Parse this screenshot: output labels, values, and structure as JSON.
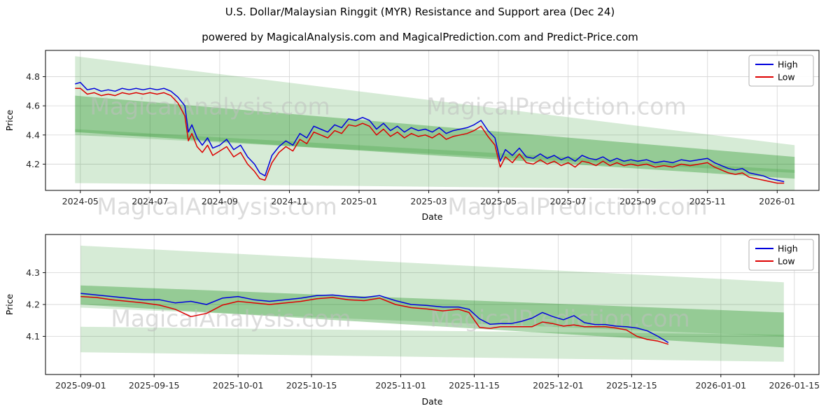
{
  "title": "U.S. Dollar/Malaysian Ringgit (MYR) Resistance and Support area (Dec 24)",
  "subtitle": "powered by MagicalAnalysis.com and MagicalPrediction.com and Predict-Price.com",
  "watermarks": {
    "analysis": "MagicalAnalysis.com",
    "prediction": "MagicalPrediction.com"
  },
  "colors": {
    "high_line": "#0000dd",
    "low_line": "#dd0000",
    "band_light": "rgba(0,128,0,0.16)",
    "band_dark": "rgba(0,128,0,0.30)",
    "grid": "#d9d9d9",
    "watermark": "#c0c0c0",
    "axis_text": "#262626"
  },
  "chart_data": [
    {
      "type": "line",
      "title": "",
      "xlabel": "Date",
      "ylabel": "Price",
      "legend": [
        "High",
        "Low"
      ],
      "legend_loc": "upper right",
      "grid": true,
      "xlim": [
        -1.0,
        21.2
      ],
      "ylim": [
        4.02,
        4.98
      ],
      "xticks": [
        {
          "v": 0,
          "label": "2024-05"
        },
        {
          "v": 2,
          "label": "2024-07"
        },
        {
          "v": 4,
          "label": "2024-09"
        },
        {
          "v": 6,
          "label": "2024-11"
        },
        {
          "v": 8,
          "label": "2025-01"
        },
        {
          "v": 10,
          "label": "2025-03"
        },
        {
          "v": 12,
          "label": "2025-05"
        },
        {
          "v": 14,
          "label": "2025-07"
        },
        {
          "v": 16,
          "label": "2025-09"
        },
        {
          "v": 18,
          "label": "2025-11"
        },
        {
          "v": 20,
          "label": "2026-01"
        }
      ],
      "yticks": [
        {
          "v": 4.2,
          "label": "4.2"
        },
        {
          "v": 4.4,
          "label": "4.4"
        },
        {
          "v": 4.6,
          "label": "4.6"
        },
        {
          "v": 4.8,
          "label": "4.8"
        }
      ],
      "bands": [
        {
          "x0": -0.15,
          "x1": 20.5,
          "top0": 4.94,
          "bottom0": 4.4,
          "top1": 4.33,
          "bottom1": 4.14,
          "color": "rgba(0,128,0,0.16)"
        },
        {
          "x0": -0.15,
          "x1": 20.5,
          "top0": 4.67,
          "bottom0": 4.42,
          "top1": 4.25,
          "bottom1": 4.1,
          "color": "rgba(0,128,0,0.30)"
        },
        {
          "x0": -0.15,
          "x1": 20.5,
          "top0": 4.44,
          "bottom0": 4.07,
          "top1": 4.16,
          "bottom1": 4.02,
          "color": "rgba(0,128,0,0.16)"
        }
      ],
      "x": [
        -0.15,
        0,
        0.2,
        0.4,
        0.6,
        0.8,
        1.0,
        1.2,
        1.4,
        1.6,
        1.8,
        2.0,
        2.2,
        2.4,
        2.6,
        2.8,
        3.0,
        3.1,
        3.2,
        3.35,
        3.5,
        3.65,
        3.8,
        4.0,
        4.2,
        4.4,
        4.6,
        4.8,
        5.0,
        5.15,
        5.3,
        5.5,
        5.7,
        5.9,
        6.1,
        6.3,
        6.5,
        6.7,
        6.9,
        7.1,
        7.3,
        7.5,
        7.7,
        7.9,
        8.1,
        8.3,
        8.5,
        8.7,
        8.9,
        9.1,
        9.3,
        9.5,
        9.7,
        9.9,
        10.1,
        10.3,
        10.5,
        10.7,
        10.9,
        11.1,
        11.3,
        11.5,
        11.7,
        11.9,
        12.05,
        12.2,
        12.4,
        12.6,
        12.8,
        13.0,
        13.2,
        13.4,
        13.6,
        13.8,
        14.0,
        14.2,
        14.4,
        14.6,
        14.8,
        15.0,
        15.2,
        15.4,
        15.6,
        15.8,
        16.0,
        16.25,
        16.5,
        16.75,
        17.0,
        17.25,
        17.5,
        17.75,
        18.0,
        18.2,
        18.4,
        18.6,
        18.8,
        19.0,
        19.2,
        19.4,
        19.6,
        19.8,
        20.0,
        20.2
      ],
      "series": [
        {
          "name": "High",
          "color": "#0000dd",
          "values": [
            4.75,
            4.76,
            4.71,
            4.72,
            4.7,
            4.71,
            4.7,
            4.72,
            4.71,
            4.72,
            4.71,
            4.72,
            4.71,
            4.72,
            4.7,
            4.66,
            4.6,
            4.42,
            4.47,
            4.38,
            4.33,
            4.38,
            4.31,
            4.33,
            4.37,
            4.3,
            4.33,
            4.25,
            4.2,
            4.14,
            4.12,
            4.26,
            4.32,
            4.36,
            4.33,
            4.41,
            4.38,
            4.46,
            4.44,
            4.42,
            4.47,
            4.45,
            4.51,
            4.5,
            4.52,
            4.5,
            4.44,
            4.48,
            4.43,
            4.46,
            4.42,
            4.45,
            4.43,
            4.44,
            4.42,
            4.45,
            4.41,
            4.43,
            4.44,
            4.45,
            4.47,
            4.5,
            4.43,
            4.38,
            4.22,
            4.3,
            4.26,
            4.31,
            4.25,
            4.24,
            4.27,
            4.24,
            4.26,
            4.23,
            4.25,
            4.22,
            4.26,
            4.24,
            4.23,
            4.25,
            4.22,
            4.24,
            4.22,
            4.23,
            4.22,
            4.23,
            4.21,
            4.22,
            4.21,
            4.23,
            4.22,
            4.23,
            4.24,
            4.21,
            4.19,
            4.17,
            4.16,
            4.17,
            4.14,
            4.13,
            4.12,
            4.1,
            4.09,
            4.08
          ]
        },
        {
          "name": "Low",
          "color": "#dd0000",
          "values": [
            4.72,
            4.72,
            4.68,
            4.69,
            4.67,
            4.68,
            4.67,
            4.69,
            4.68,
            4.69,
            4.68,
            4.69,
            4.68,
            4.69,
            4.67,
            4.62,
            4.53,
            4.36,
            4.41,
            4.32,
            4.28,
            4.33,
            4.26,
            4.29,
            4.32,
            4.25,
            4.28,
            4.2,
            4.15,
            4.1,
            4.09,
            4.21,
            4.28,
            4.32,
            4.29,
            4.37,
            4.34,
            4.42,
            4.4,
            4.38,
            4.43,
            4.41,
            4.47,
            4.46,
            4.48,
            4.46,
            4.4,
            4.44,
            4.39,
            4.42,
            4.38,
            4.41,
            4.39,
            4.4,
            4.38,
            4.41,
            4.37,
            4.39,
            4.4,
            4.41,
            4.43,
            4.46,
            4.39,
            4.33,
            4.18,
            4.25,
            4.21,
            4.27,
            4.21,
            4.2,
            4.23,
            4.2,
            4.22,
            4.19,
            4.21,
            4.18,
            4.22,
            4.21,
            4.19,
            4.22,
            4.19,
            4.21,
            4.19,
            4.2,
            4.19,
            4.2,
            4.18,
            4.19,
            4.18,
            4.2,
            4.19,
            4.2,
            4.21,
            4.18,
            4.16,
            4.14,
            4.13,
            4.14,
            4.11,
            4.1,
            4.09,
            4.08,
            4.07,
            4.07
          ]
        }
      ]
    },
    {
      "type": "line",
      "title": "",
      "xlabel": "Date",
      "ylabel": "Price",
      "legend": [
        "High",
        "Low"
      ],
      "legend_loc": "upper right",
      "grid": true,
      "xlim": [
        -6.7,
        140.7
      ],
      "ylim": [
        3.98,
        4.42
      ],
      "xticks": [
        {
          "v": 0,
          "label": "2025-09-01"
        },
        {
          "v": 14,
          "label": "2025-09-15"
        },
        {
          "v": 30,
          "label": "2025-10-01"
        },
        {
          "v": 44,
          "label": "2025-10-15"
        },
        {
          "v": 61,
          "label": "2025-11-01"
        },
        {
          "v": 75,
          "label": "2025-11-15"
        },
        {
          "v": 91,
          "label": "2025-12-01"
        },
        {
          "v": 105,
          "label": "2025-12-15"
        },
        {
          "v": 122,
          "label": "2026-01-01"
        },
        {
          "v": 136,
          "label": "2026-01-15"
        }
      ],
      "yticks": [
        {
          "v": 4.1,
          "label": "4.1"
        },
        {
          "v": 4.2,
          "label": "4.2"
        },
        {
          "v": 4.3,
          "label": "4.3"
        }
      ],
      "bands": [
        {
          "x0": 0,
          "x1": 134,
          "top0": 4.385,
          "bottom0": 4.19,
          "top1": 4.27,
          "bottom1": 4.1,
          "color": "rgba(0,128,0,0.16)"
        },
        {
          "x0": 0,
          "x1": 134,
          "top0": 4.26,
          "bottom0": 4.2,
          "top1": 4.175,
          "bottom1": 4.065,
          "color": "rgba(0,128,0,0.30)"
        },
        {
          "x0": 0,
          "x1": 134,
          "top0": 4.13,
          "bottom0": 4.05,
          "top1": 4.105,
          "bottom1": 4.02,
          "color": "rgba(0,128,0,0.16)"
        }
      ],
      "x": [
        0,
        3,
        6,
        9,
        12,
        15,
        18,
        21,
        24,
        27,
        30,
        33,
        36,
        39,
        42,
        45,
        48,
        51,
        54,
        57,
        60,
        63,
        66,
        69,
        72,
        74,
        76,
        78,
        80,
        82,
        84,
        86,
        88,
        90,
        92,
        94,
        96,
        98,
        100,
        102,
        104,
        106,
        108,
        110,
        112
      ],
      "series": [
        {
          "name": "High",
          "color": "#0000dd",
          "values": [
            4.235,
            4.23,
            4.225,
            4.22,
            4.215,
            4.215,
            4.205,
            4.21,
            4.2,
            4.22,
            4.225,
            4.215,
            4.21,
            4.215,
            4.22,
            4.228,
            4.23,
            4.225,
            4.222,
            4.228,
            4.212,
            4.2,
            4.197,
            4.192,
            4.192,
            4.185,
            4.155,
            4.138,
            4.14,
            4.14,
            4.147,
            4.157,
            4.175,
            4.162,
            4.152,
            4.165,
            4.143,
            4.137,
            4.137,
            4.132,
            4.13,
            4.126,
            4.117,
            4.1,
            4.08
          ]
        },
        {
          "name": "Low",
          "color": "#dd0000",
          "values": [
            4.225,
            4.222,
            4.215,
            4.21,
            4.205,
            4.198,
            4.185,
            4.162,
            4.172,
            4.198,
            4.21,
            4.205,
            4.2,
            4.205,
            4.21,
            4.218,
            4.222,
            4.215,
            4.212,
            4.22,
            4.2,
            4.19,
            4.186,
            4.18,
            4.185,
            4.175,
            4.128,
            4.125,
            4.13,
            4.13,
            4.13,
            4.13,
            4.145,
            4.14,
            4.132,
            4.136,
            4.13,
            4.13,
            4.13,
            4.126,
            4.12,
            4.1,
            4.09,
            4.085,
            4.075
          ]
        }
      ]
    }
  ]
}
